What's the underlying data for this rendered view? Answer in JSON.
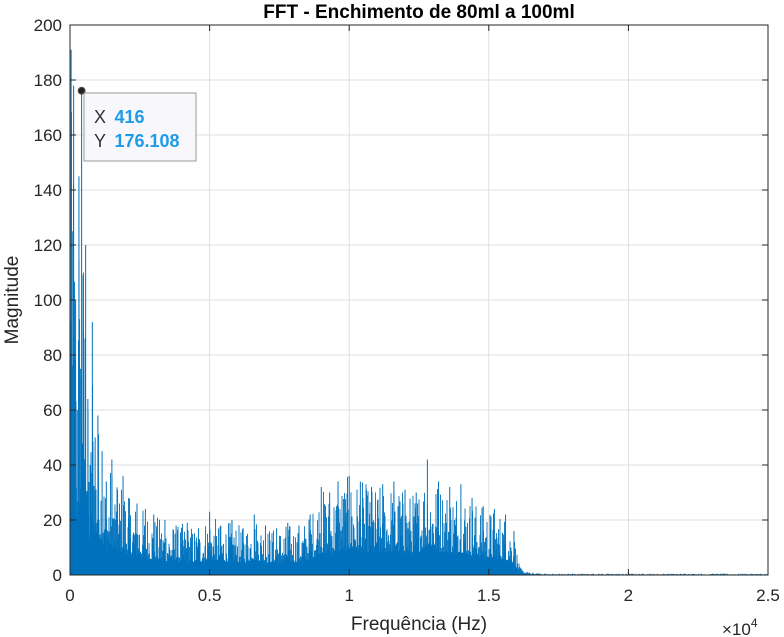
{
  "chart_data": {
    "type": "line",
    "title": "FFT - Enchimento de 80ml a 100ml",
    "xlabel": "Frequência (Hz)",
    "ylabel": "Magnitude",
    "xlim": [
      0,
      25000
    ],
    "ylim": [
      0,
      200
    ],
    "x_exponent_label": "×10",
    "x_exponent_power": "4",
    "xticks": [
      0,
      5000,
      10000,
      15000,
      20000,
      25000
    ],
    "xtick_labels": [
      "0",
      "0.5",
      "1",
      "1.5",
      "2",
      "2.5"
    ],
    "yticks": [
      0,
      20,
      40,
      60,
      80,
      100,
      120,
      140,
      160,
      180,
      200
    ],
    "ytick_labels": [
      "0",
      "20",
      "40",
      "60",
      "80",
      "100",
      "120",
      "140",
      "160",
      "180",
      "200"
    ],
    "grid": true,
    "series_color": "#0072bd",
    "series": [
      {
        "x": [
          0,
          40,
          80,
          130,
          200,
          260,
          320,
          380,
          416,
          480,
          560,
          640,
          720,
          800,
          900,
          1000,
          1150,
          1300,
          1500,
          1700,
          1900,
          2100,
          2400,
          2700,
          3000,
          3400,
          3800,
          4200,
          4600,
          5000,
          5400,
          5800,
          6200,
          6600,
          7000,
          7400,
          7800,
          8200,
          8600,
          9000,
          9300,
          9600,
          10000,
          10400,
          10800,
          11200,
          11600,
          12000,
          12400,
          12800,
          13200,
          13600,
          14000,
          14400,
          14800,
          15200,
          15600,
          15900,
          16100,
          16400,
          17000,
          18000,
          20000,
          22000,
          25000
        ],
        "peaks": [
          48,
          191,
          125,
          178,
          100,
          60,
          145,
          75,
          176.108,
          110,
          120,
          64,
          40,
          92,
          50,
          58,
          45,
          34,
          42,
          31,
          36,
          28,
          26,
          24,
          22,
          20,
          18,
          19,
          17,
          23,
          18,
          20,
          17,
          22,
          18,
          17,
          19,
          18,
          22,
          32,
          30,
          34,
          36,
          34,
          32,
          33,
          34,
          31,
          30,
          42,
          34,
          32,
          33,
          28,
          25,
          24,
          22,
          16,
          3,
          1,
          0.5,
          0.5,
          0.5,
          0.5,
          0.5
        ]
      }
    ],
    "datatip": {
      "x_key": "X",
      "x_value": "416",
      "y_key": "Y",
      "y_value": "176.108"
    }
  }
}
